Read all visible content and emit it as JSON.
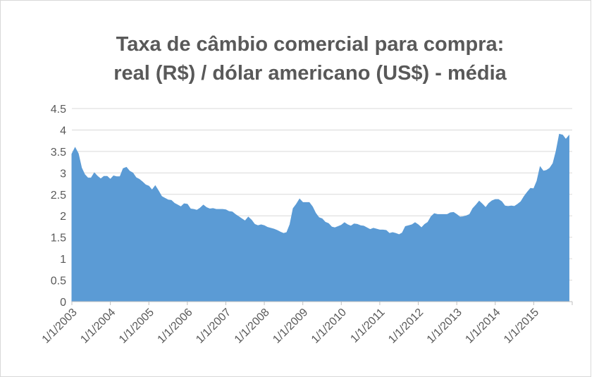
{
  "chart_data": {
    "type": "area",
    "title": [
      "Taxa de câmbio comercial para compra:",
      "real (R$) / dólar americano (US$) - média"
    ],
    "categories": [
      "1/1/2003",
      null,
      null,
      null,
      null,
      null,
      null,
      null,
      null,
      null,
      null,
      null,
      "1/1/2004",
      null,
      null,
      null,
      null,
      null,
      null,
      null,
      null,
      null,
      null,
      null,
      "1/1/2005",
      null,
      null,
      null,
      null,
      null,
      null,
      null,
      null,
      null,
      null,
      null,
      "1/1/2006",
      null,
      null,
      null,
      null,
      null,
      null,
      null,
      null,
      null,
      null,
      null,
      "1/1/2007",
      null,
      null,
      null,
      null,
      null,
      null,
      null,
      null,
      null,
      null,
      null,
      "1/1/2008",
      null,
      null,
      null,
      null,
      null,
      null,
      null,
      null,
      null,
      null,
      null,
      "1/1/2009",
      null,
      null,
      null,
      null,
      null,
      null,
      null,
      null,
      null,
      null,
      null,
      "1/1/2010",
      null,
      null,
      null,
      null,
      null,
      null,
      null,
      null,
      null,
      null,
      null,
      "1/1/2011",
      null,
      null,
      null,
      null,
      null,
      null,
      null,
      null,
      null,
      null,
      null,
      "1/1/2012",
      null,
      null,
      null,
      null,
      null,
      null,
      null,
      null,
      null,
      null,
      null,
      "1/1/2013",
      null,
      null,
      null,
      null,
      null,
      null,
      null,
      null,
      null,
      null,
      null,
      "1/1/2014",
      null,
      null,
      null,
      null,
      null,
      null,
      null,
      null,
      null,
      null,
      null,
      "1/1/2015",
      null,
      null,
      null,
      null,
      null,
      null,
      null,
      null,
      null,
      null,
      null
    ],
    "values": [
      3.44,
      3.59,
      3.45,
      3.12,
      2.96,
      2.88,
      2.88,
      3.0,
      2.92,
      2.86,
      2.92,
      2.92,
      2.85,
      2.93,
      2.91,
      2.91,
      3.1,
      3.13,
      3.04,
      3.0,
      2.89,
      2.85,
      2.79,
      2.72,
      2.69,
      2.6,
      2.7,
      2.58,
      2.45,
      2.41,
      2.37,
      2.36,
      2.29,
      2.25,
      2.21,
      2.28,
      2.27,
      2.16,
      2.15,
      2.13,
      2.18,
      2.25,
      2.19,
      2.16,
      2.17,
      2.15,
      2.15,
      2.15,
      2.14,
      2.1,
      2.09,
      2.03,
      1.98,
      1.93,
      1.88,
      1.97,
      1.9,
      1.8,
      1.77,
      1.79,
      1.77,
      1.73,
      1.71,
      1.69,
      1.66,
      1.62,
      1.59,
      1.61,
      1.8,
      2.17,
      2.27,
      2.39,
      2.31,
      2.31,
      2.31,
      2.21,
      2.06,
      1.96,
      1.93,
      1.85,
      1.82,
      1.74,
      1.72,
      1.75,
      1.78,
      1.84,
      1.79,
      1.76,
      1.81,
      1.8,
      1.77,
      1.76,
      1.72,
      1.68,
      1.71,
      1.69,
      1.67,
      1.67,
      1.66,
      1.59,
      1.61,
      1.59,
      1.56,
      1.6,
      1.75,
      1.77,
      1.79,
      1.84,
      1.79,
      1.72,
      1.8,
      1.85,
      1.98,
      2.05,
      2.03,
      2.03,
      2.03,
      2.03,
      2.07,
      2.08,
      2.03,
      1.97,
      1.98,
      2.0,
      2.03,
      2.17,
      2.25,
      2.34,
      2.27,
      2.19,
      2.29,
      2.35,
      2.38,
      2.38,
      2.33,
      2.23,
      2.22,
      2.23,
      2.22,
      2.27,
      2.33,
      2.45,
      2.55,
      2.64,
      2.63,
      2.81,
      3.14,
      3.04,
      3.06,
      3.11,
      3.22,
      3.51,
      3.9,
      3.88,
      3.78,
      3.87
    ],
    "color": "#5b9bd5",
    "ylim": [
      0,
      4.5
    ],
    "yticks": [
      0,
      0.5,
      1,
      1.5,
      2,
      2.5,
      3,
      3.5,
      4,
      4.5
    ],
    "grid": true
  }
}
